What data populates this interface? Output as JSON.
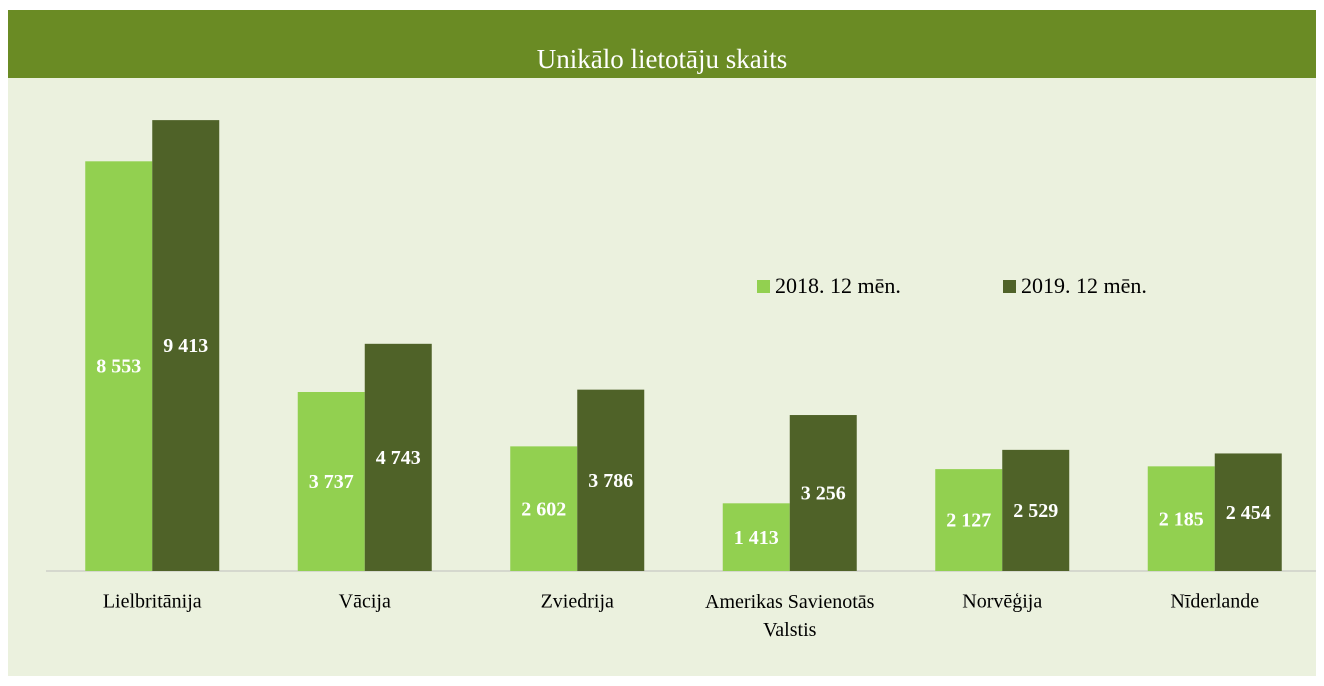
{
  "chart_data": {
    "type": "bar",
    "title": "Unikālo lietotāju skaits",
    "categories": [
      "Lielbritānija",
      "Vācija",
      "Zviedrija",
      "Amerikas Savienotās Valstis",
      "Norvēģija",
      "Nīderlande"
    ],
    "series": [
      {
        "name": "2018. 12 mēn.",
        "color": "#92d050",
        "values": [
          8553,
          3737,
          2602,
          1413,
          2127,
          2185
        ],
        "value_labels": [
          "8 553",
          "3 737",
          "2 602",
          "1 413",
          "2 127",
          "2 185"
        ]
      },
      {
        "name": "2019. 12 mēn.",
        "color": "#4f6228",
        "values": [
          9413,
          4743,
          3786,
          3256,
          2529,
          2454
        ],
        "value_labels": [
          "9 413",
          "4 743",
          "3 786",
          "3 256",
          "2 529",
          "2 454"
        ]
      }
    ],
    "ylim": [
      0,
      10000
    ]
  }
}
